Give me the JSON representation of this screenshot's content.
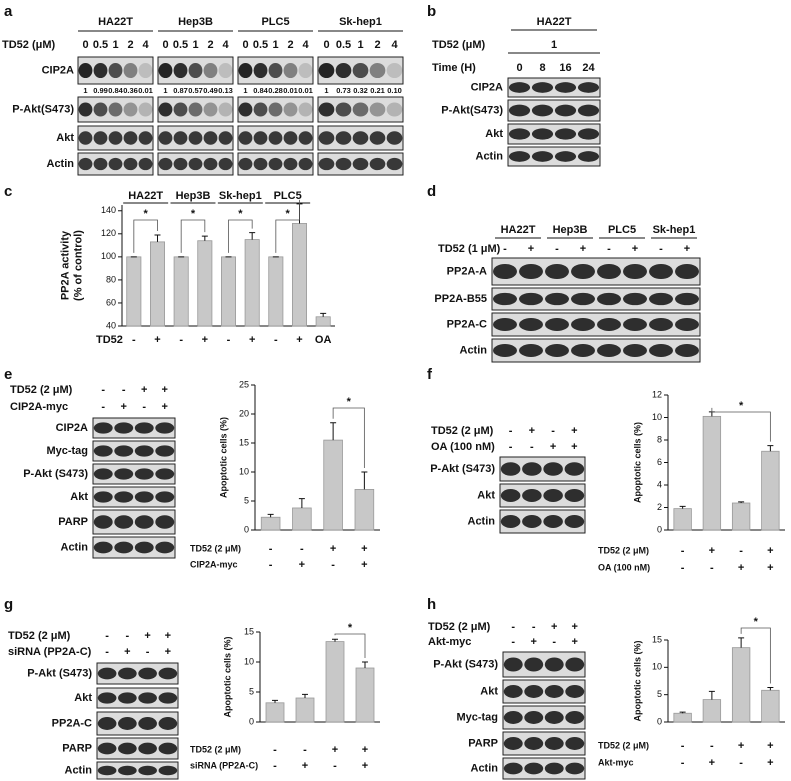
{
  "chart_data": [
    {
      "panel": "c",
      "type": "bar",
      "ylabel": [
        "PP2A activity",
        "(% of control)"
      ],
      "x_row_label": "TD52",
      "categories": [
        "-",
        "+",
        "-",
        "+",
        "-",
        "+",
        "-",
        "+",
        "OA"
      ],
      "groups": [
        {
          "name": "HA22T",
          "significance": "*"
        },
        {
          "name": "Hep3B",
          "significance": "*"
        },
        {
          "name": "Sk-hep1",
          "significance": "*"
        },
        {
          "name": "PLC5",
          "significance": "*"
        }
      ],
      "values": [
        100,
        113,
        100,
        114,
        100,
        115,
        100,
        129,
        48
      ],
      "errors": [
        0,
        6,
        0,
        4,
        0,
        6,
        0,
        17,
        3
      ],
      "color": "#c8c8c8",
      "ylim": [
        40,
        145
      ],
      "yticks": [
        40,
        60,
        80,
        100,
        120,
        140
      ]
    },
    {
      "panel": "e",
      "type": "bar",
      "ylabel": [
        "Apoptotic cells (%)"
      ],
      "conditions": [
        {
          "label": "TD52 (2 μM)",
          "signs": [
            "-",
            "-",
            "+",
            "+"
          ]
        },
        {
          "label": "CIP2A-myc",
          "signs": [
            "-",
            "+",
            "-",
            "+"
          ]
        }
      ],
      "values": [
        2.2,
        3.8,
        15.5,
        7.0
      ],
      "errors": [
        0.5,
        1.6,
        3.0,
        3.0
      ],
      "significance": "*",
      "color": "#c8c8c8",
      "ylim": [
        0,
        25
      ],
      "yticks": [
        0,
        5,
        10,
        15,
        20,
        25
      ]
    },
    {
      "panel": "f",
      "type": "bar",
      "ylabel": [
        "Apoptotic cells (%)"
      ],
      "conditions": [
        {
          "label": "TD52 (2 μM)",
          "signs": [
            "-",
            "+",
            "-",
            "+"
          ]
        },
        {
          "label": "OA (100 nM)",
          "signs": [
            "-",
            "-",
            "+",
            "+"
          ]
        }
      ],
      "values": [
        1.9,
        10.1,
        2.4,
        7.0
      ],
      "errors": [
        0.2,
        0.4,
        0.1,
        0.5
      ],
      "significance": "*",
      "color": "#c8c8c8",
      "ylim": [
        0,
        12
      ],
      "yticks": [
        0,
        2,
        4,
        6,
        8,
        10,
        12
      ]
    },
    {
      "panel": "g",
      "type": "bar",
      "ylabel": [
        "Apoptotic cells (%)"
      ],
      "conditions": [
        {
          "label": "TD52 (2 μM)",
          "signs": [
            "-",
            "-",
            "+",
            "+"
          ]
        },
        {
          "label": "siRNA (PP2A-C)",
          "signs": [
            "-",
            "+",
            "-",
            "+"
          ]
        }
      ],
      "values": [
        3.2,
        4.0,
        13.4,
        9.0
      ],
      "errors": [
        0.4,
        0.6,
        0.4,
        1.0
      ],
      "significance": "*",
      "color": "#c8c8c8",
      "ylim": [
        0,
        15
      ],
      "yticks": [
        0,
        5,
        10,
        15
      ]
    },
    {
      "panel": "h",
      "type": "bar",
      "ylabel": [
        "Apoptotic cells (%)"
      ],
      "conditions": [
        {
          "label": "TD52 (2 μM)",
          "signs": [
            "-",
            "-",
            "+",
            "+"
          ]
        },
        {
          "label": "Akt-myc",
          "signs": [
            "-",
            "+",
            "-",
            "+"
          ]
        }
      ],
      "values": [
        1.6,
        4.1,
        13.6,
        5.8
      ],
      "errors": [
        0.2,
        1.5,
        1.8,
        0.5
      ],
      "significance": "*",
      "color": "#c8c8c8",
      "ylim": [
        0,
        15
      ],
      "yticks": [
        0,
        5,
        10,
        15
      ]
    }
  ],
  "blot_a": {
    "panel": "a",
    "dose_label": "TD52 (μM)",
    "groups": [
      {
        "name": "HA22T",
        "doses": [
          0,
          0.5,
          1,
          2,
          4
        ],
        "quant": [
          "1",
          "0.99",
          "0.84",
          "0.36",
          "0.01"
        ]
      },
      {
        "name": "Hep3B",
        "doses": [
          0,
          0.5,
          1,
          2,
          4
        ],
        "quant": [
          "1",
          "0.87",
          "0.57",
          "0.49",
          "0.13"
        ]
      },
      {
        "name": "PLC5",
        "doses": [
          0,
          0.5,
          1,
          2,
          4
        ],
        "quant": [
          "1",
          "0.84",
          "0.28",
          "0.01",
          "0.01"
        ]
      },
      {
        "name": "Sk-hep1",
        "doses": [
          0,
          0.5,
          1,
          2,
          4
        ],
        "quant": [
          "1",
          "0.73",
          "0.32",
          "0.21",
          "0.10"
        ]
      }
    ],
    "rows": [
      "CIP2A",
      "P-Akt(S473)",
      "Akt",
      "Actin"
    ]
  },
  "blots": [
    {
      "panel": "b",
      "groups": [
        "HA22T"
      ],
      "conditions": [
        {
          "label": "TD52 (μM)",
          "value": 1
        },
        {
          "label": "Time (H)",
          "signs": [
            0,
            8,
            16,
            24
          ]
        }
      ],
      "rows": [
        "CIP2A",
        "P-Akt(S473)",
        "Akt",
        "Actin"
      ]
    },
    {
      "panel": "d",
      "groups": [
        "HA22T",
        "Hep3B",
        "PLC5",
        "Sk-hep1"
      ],
      "conditions": [
        {
          "label": "TD52 (1 μM)",
          "signs": [
            "-",
            "+",
            "-",
            "+",
            "-",
            "+",
            "-",
            "+"
          ]
        }
      ],
      "rows": [
        "PP2A-A",
        "PP2A-B55",
        "PP2A-C",
        "Actin"
      ]
    },
    {
      "panel": "e",
      "conditions": [
        {
          "label": "TD52 (2 μM)",
          "signs": [
            "-",
            "-",
            "+",
            "+"
          ]
        },
        {
          "label": "CIP2A-myc",
          "signs": [
            "-",
            "+",
            "-",
            "+"
          ]
        }
      ],
      "rows": [
        "CIP2A",
        "Myc-tag",
        "P-Akt (S473)",
        "Akt",
        "PARP",
        "Actin"
      ]
    },
    {
      "panel": "f",
      "conditions": [
        {
          "label": "TD52 (2 μM)",
          "signs": [
            "-",
            "+",
            "-",
            "+"
          ]
        },
        {
          "label": "OA (100 nM)",
          "signs": [
            "-",
            "-",
            "+",
            "+"
          ]
        }
      ],
      "rows": [
        "P-Akt (S473)",
        "Akt",
        "Actin"
      ]
    },
    {
      "panel": "g",
      "conditions": [
        {
          "label": "TD52 (2 μM)",
          "signs": [
            "-",
            "-",
            "+",
            "+"
          ]
        },
        {
          "label": "siRNA (PP2A-C)",
          "signs": [
            "-",
            "+",
            "-",
            "+"
          ]
        }
      ],
      "rows": [
        "P-Akt (S473)",
        "Akt",
        "PP2A-C",
        "PARP",
        "Actin"
      ]
    },
    {
      "panel": "h",
      "conditions": [
        {
          "label": "TD52 (2 μM)",
          "signs": [
            "-",
            "-",
            "+",
            "+"
          ]
        },
        {
          "label": "Akt-myc",
          "signs": [
            "-",
            "+",
            "-",
            "+"
          ]
        }
      ],
      "rows": [
        "P-Akt (S473)",
        "Akt",
        "Myc-tag",
        "PARP",
        "Actin"
      ]
    }
  ]
}
